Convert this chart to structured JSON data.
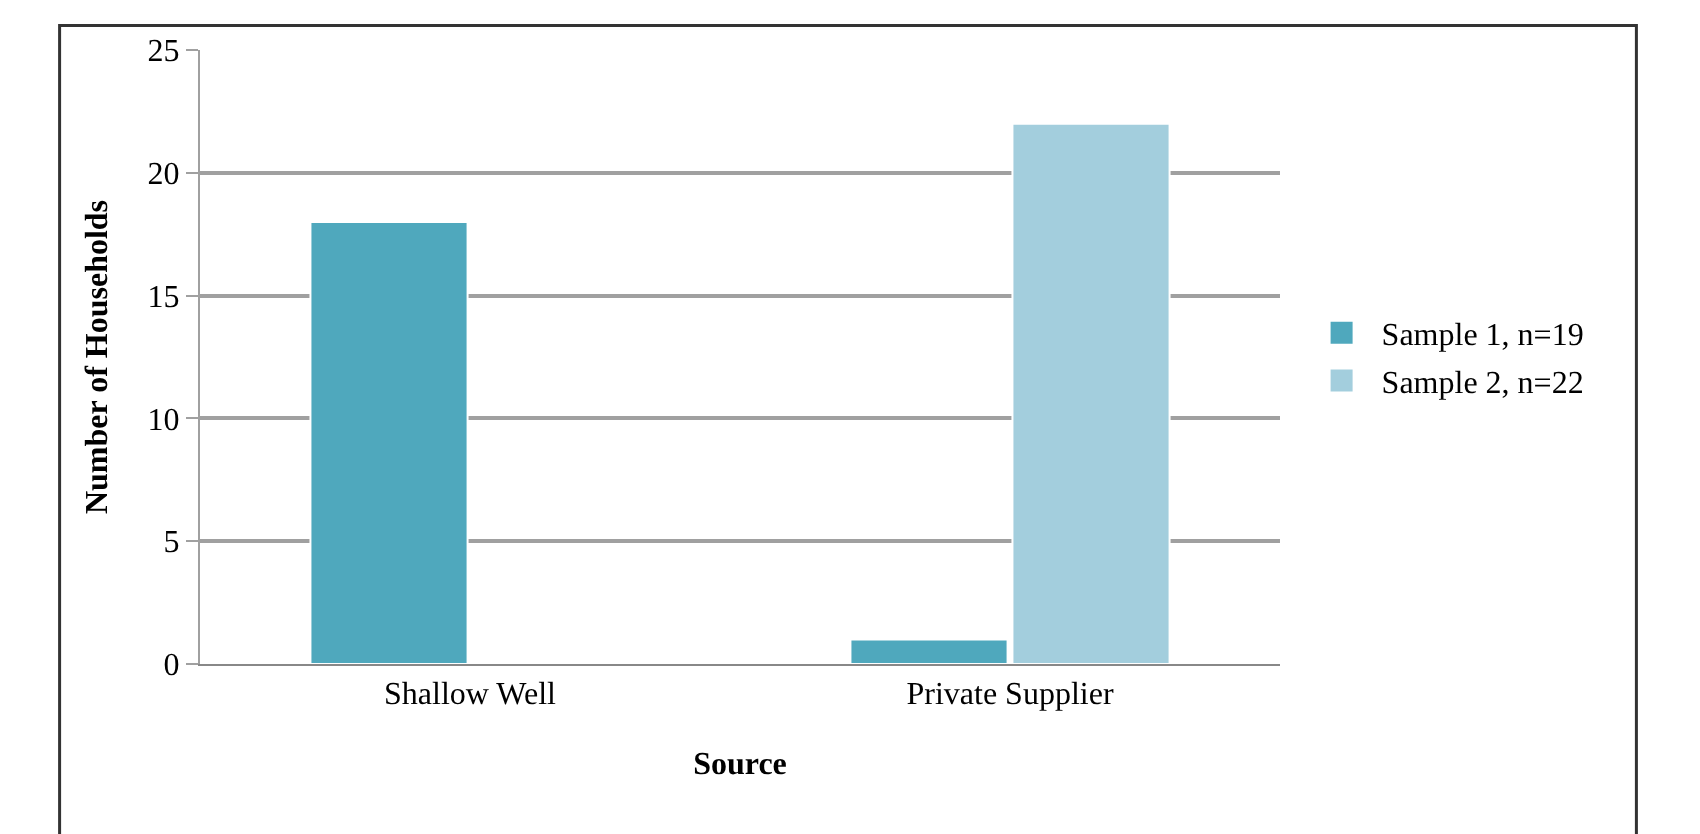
{
  "chart_data": {
    "type": "bar",
    "xlabel": "Source",
    "ylabel": "Number of Households",
    "categories": [
      "Shallow Well",
      "Private Supplier"
    ],
    "series": [
      {
        "name": "Sample 1, n=19",
        "color": "#4fa8bd",
        "values": [
          18,
          1
        ]
      },
      {
        "name": "Sample 2, n=22",
        "color": "#a3cedd",
        "values": [
          null,
          22
        ]
      }
    ],
    "ylim": [
      0,
      25
    ],
    "yticks": [
      0,
      5,
      10,
      15,
      20,
      25
    ],
    "grid": "y",
    "legend": "right"
  }
}
